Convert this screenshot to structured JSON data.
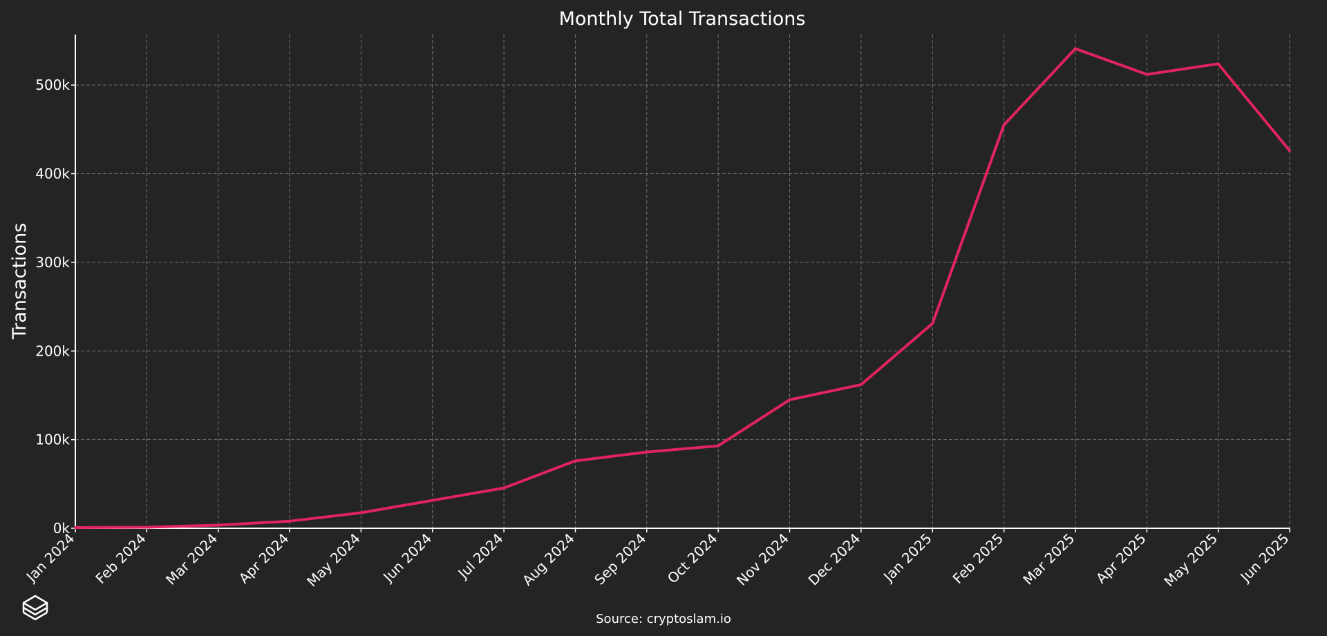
{
  "chart_data": {
    "type": "line",
    "title": "Monthly Total Transactions",
    "xlabel": "",
    "ylabel": "Transactions",
    "categories": [
      "Jan 2024",
      "Feb 2024",
      "Mar 2024",
      "Apr 2024",
      "May 2024",
      "Jun 2024",
      "Jul 2024",
      "Aug 2024",
      "Sep 2024",
      "Oct 2024",
      "Nov 2024",
      "Dec 2024",
      "Jan 2025",
      "Feb 2025",
      "Mar 2025",
      "Apr 2025",
      "May 2025",
      "Jun 2025"
    ],
    "series": [
      {
        "values": [
          800,
          1200,
          3500,
          8000,
          17500,
          31500,
          45500,
          76000,
          86000,
          93000,
          145000,
          162000,
          231000,
          455000,
          541000,
          512000,
          524000,
          426000
        ],
        "color": "#e0245e"
      }
    ],
    "ylim": [
      0,
      557000
    ],
    "yticks": [
      0,
      100000,
      200000,
      300000,
      400000,
      500000
    ],
    "ytick_labels": [
      "0k",
      "100k",
      "200k",
      "300k",
      "400k",
      "500k"
    ],
    "grid": true,
    "source": "Source: cryptoslam.io"
  },
  "logo": {
    "icon": "stacked-layers-logo-icon"
  },
  "colors": {
    "background": "#242424",
    "line": "#e0245e",
    "text": "#ffffff",
    "grid": "#808080"
  }
}
